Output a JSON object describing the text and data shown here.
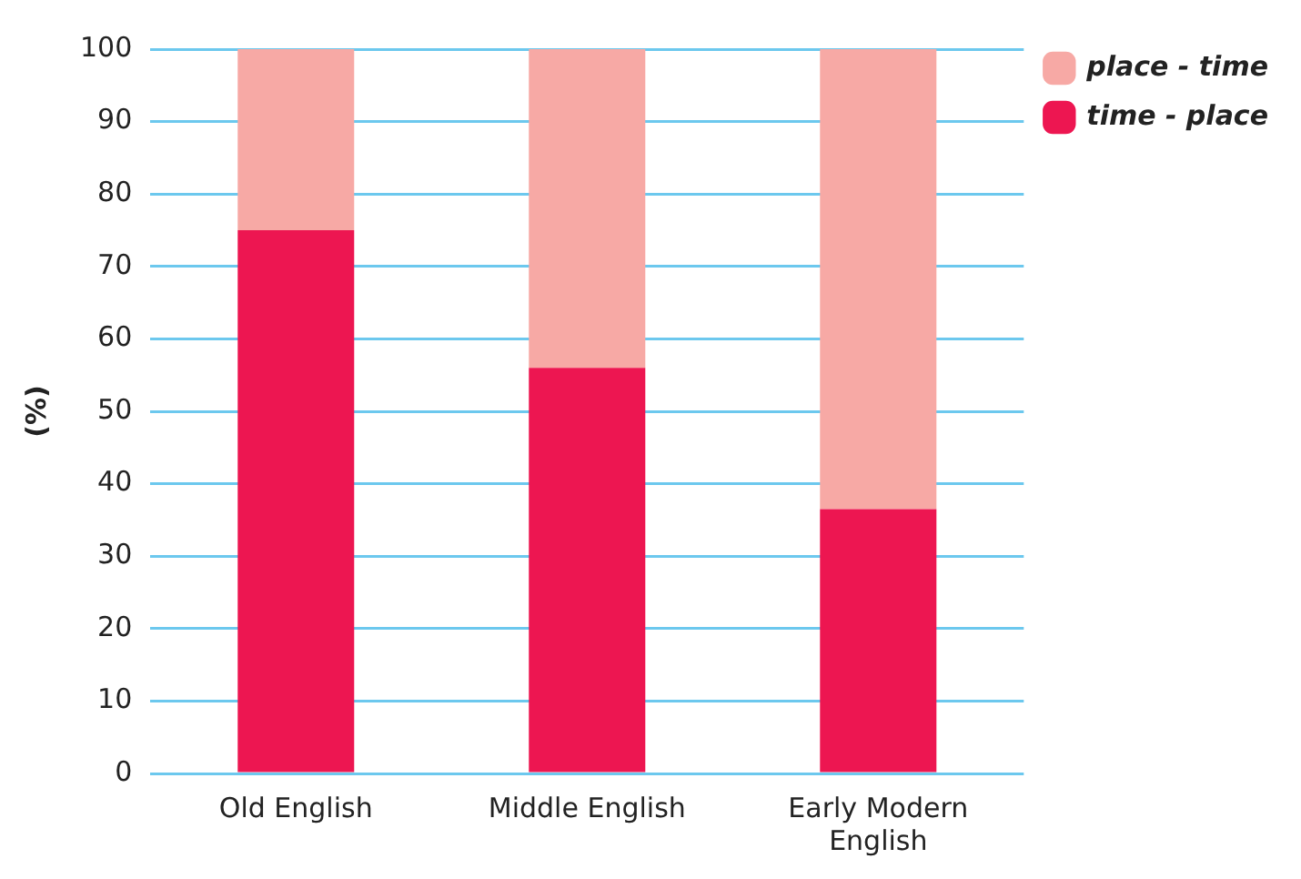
{
  "chart_data": {
    "type": "bar",
    "stacked": true,
    "ylabel": "(%)",
    "categories": [
      "Old English",
      "Middle English",
      "Early Modern English"
    ],
    "series": [
      {
        "name": "time - place",
        "color": "#ed1651",
        "values": [
          75,
          56,
          36.5
        ]
      },
      {
        "name": "place - time",
        "color": "#f7a9a5",
        "values": [
          25,
          44,
          63.5
        ]
      }
    ],
    "ylim": [
      0,
      100
    ],
    "yticks": [
      0,
      10,
      20,
      30,
      40,
      50,
      60,
      70,
      80,
      90,
      100
    ],
    "grid": "y",
    "legend": "top right"
  }
}
